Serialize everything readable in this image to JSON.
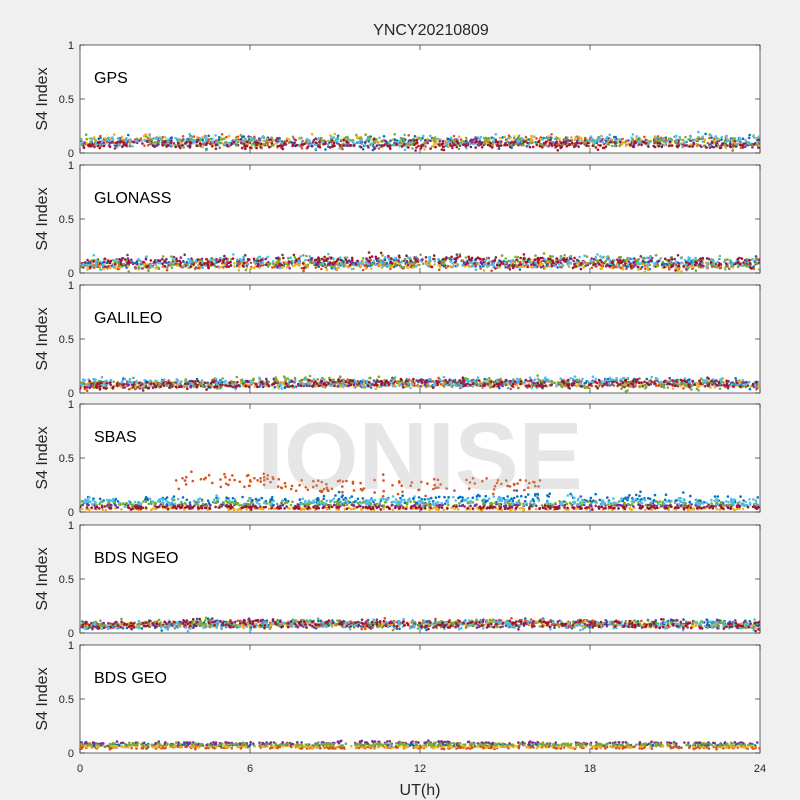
{
  "title": "YNCY20210809",
  "xlabel": "UT(h)",
  "ylabel": "S4 Index",
  "watermark": "IONISE",
  "xticks": [
    "0",
    "6",
    "12",
    "18",
    "24"
  ],
  "yticks": [
    "0",
    "0.5",
    "1"
  ],
  "colors": [
    "#0072bd",
    "#d95319",
    "#edb120",
    "#7e2f8e",
    "#77ac30",
    "#4dbeee",
    "#a2142f"
  ],
  "chart_data": [
    {
      "type": "scatter",
      "panel": "GPS",
      "xlim": [
        0,
        24
      ],
      "ylim": [
        0,
        1
      ],
      "series": [
        {
          "base": [
            0.1,
            0.11,
            0.1,
            0.12,
            0.1,
            0.09,
            0.1,
            0.11,
            0.1,
            0.12,
            0.1,
            0.11,
            0.1
          ],
          "spread": 0.04
        },
        {
          "base": [
            0.09,
            0.1,
            0.12,
            0.11,
            0.1,
            0.1,
            0.09,
            0.1,
            0.11,
            0.1,
            0.12,
            0.1,
            0.09
          ],
          "spread": 0.04
        },
        {
          "base": [
            0.1,
            0.12,
            0.11,
            0.1,
            0.13,
            0.11,
            0.1,
            0.1,
            0.12,
            0.11,
            0.1,
            0.09,
            0.1
          ],
          "spread": 0.04
        },
        {
          "base": [
            0.08,
            0.09,
            0.09,
            0.1,
            0.09,
            0.08,
            0.09,
            0.1,
            0.09,
            0.09,
            0.1,
            0.08,
            0.08
          ],
          "spread": 0.03
        },
        {
          "base": [
            0.1,
            0.1,
            0.09,
            0.11,
            0.1,
            0.12,
            0.11,
            0.1,
            0.1,
            0.11,
            0.1,
            0.1,
            0.11
          ],
          "spread": 0.04
        },
        {
          "base": [
            0.11,
            0.1,
            0.11,
            0.1,
            0.11,
            0.1,
            0.1,
            0.11,
            0.1,
            0.12,
            0.11,
            0.13,
            0.12
          ],
          "spread": 0.04
        },
        {
          "base": [
            0.07,
            0.08,
            0.08,
            0.07,
            0.08,
            0.08,
            0.07,
            0.08,
            0.08,
            0.07,
            0.08,
            0.07,
            0.07
          ],
          "spread": 0.03
        }
      ]
    },
    {
      "type": "scatter",
      "panel": "GLONASS",
      "xlim": [
        0,
        24
      ],
      "ylim": [
        0,
        1
      ],
      "series": [
        {
          "base": [
            0.08,
            0.07,
            0.08,
            0.09,
            0.08,
            0.09,
            0.1,
            0.09,
            0.08,
            0.09,
            0.08,
            0.09,
            0.08
          ],
          "spread": 0.03
        },
        {
          "base": [
            0.06,
            0.07,
            0.07,
            0.08,
            0.07,
            0.08,
            0.08,
            0.07,
            0.08,
            0.07,
            0.06,
            0.07,
            0.06
          ],
          "spread": 0.03
        },
        {
          "base": [
            0.07,
            0.06,
            0.08,
            0.07,
            0.08,
            0.07,
            0.08,
            0.07,
            0.08,
            0.07,
            0.06,
            0.07,
            0.06
          ],
          "spread": 0.03
        },
        {
          "base": [
            0.09,
            0.1,
            0.11,
            0.1,
            0.11,
            0.1,
            0.11,
            0.1,
            0.09,
            0.1,
            0.11,
            0.1,
            0.12
          ],
          "spread": 0.04
        },
        {
          "base": [
            0.08,
            0.08,
            0.09,
            0.1,
            0.11,
            0.1,
            0.1,
            0.11,
            0.14,
            0.12,
            0.1,
            0.09,
            0.1
          ],
          "spread": 0.04
        },
        {
          "base": [
            0.1,
            0.09,
            0.1,
            0.11,
            0.12,
            0.1,
            0.11,
            0.1,
            0.09,
            0.12,
            0.1,
            0.11,
            0.09
          ],
          "spread": 0.04
        },
        {
          "base": [
            0.09,
            0.1,
            0.09,
            0.1,
            0.11,
            0.12,
            0.13,
            0.12,
            0.1,
            0.1,
            0.09,
            0.1,
            0.09
          ],
          "spread": 0.04
        }
      ]
    },
    {
      "type": "scatter",
      "panel": "GALILEO",
      "xlim": [
        0,
        24
      ],
      "ylim": [
        0,
        1
      ],
      "series": [
        {
          "base": [
            0.08,
            0.08,
            0.09,
            0.08,
            0.09,
            0.08,
            0.09,
            0.1,
            0.09,
            0.1,
            0.11,
            0.09,
            0.08
          ],
          "spread": 0.03
        },
        {
          "base": [
            0.07,
            0.08,
            0.08,
            0.09,
            0.09,
            0.1,
            0.09,
            0.08,
            0.09,
            0.08,
            0.09,
            0.08,
            0.07
          ],
          "spread": 0.03
        },
        {
          "base": [
            0.08,
            0.08,
            0.07,
            0.08,
            0.08,
            0.07,
            0.08,
            0.08,
            0.07,
            0.08,
            0.08,
            0.07,
            0.08
          ],
          "spread": 0.02
        },
        {
          "base": [
            0.07,
            0.07,
            0.08,
            0.08,
            0.09,
            0.09,
            0.1,
            0.09,
            0.09,
            0.09,
            0.08,
            0.09,
            0.08
          ],
          "spread": 0.03
        },
        {
          "base": [
            0.08,
            0.08,
            0.09,
            0.1,
            0.12,
            0.1,
            0.09,
            0.1,
            0.09,
            0.08,
            0.08,
            0.07,
            0.08
          ],
          "spread": 0.04
        },
        {
          "base": [
            0.1,
            0.1,
            0.09,
            0.09,
            0.1,
            0.09,
            0.1,
            0.09,
            0.1,
            0.11,
            0.12,
            0.1,
            0.09
          ],
          "spread": 0.03
        },
        {
          "base": [
            0.07,
            0.07,
            0.08,
            0.08,
            0.09,
            0.1,
            0.1,
            0.09,
            0.09,
            0.09,
            0.1,
            0.09,
            0.08
          ],
          "spread": 0.03
        }
      ]
    },
    {
      "type": "scatter",
      "panel": "SBAS",
      "xlim": [
        0,
        24
      ],
      "ylim": [
        0,
        1
      ],
      "series": [
        {
          "base": [
            0.1,
            0.1,
            0.11,
            0.1,
            0.11,
            0.12,
            0.11,
            0.12,
            0.13,
            0.13,
            0.12,
            0.11,
            0.1
          ],
          "spread": 0.04
        },
        {
          "base": [
            0.1,
            0.1,
            0.3,
            0.28,
            0.24,
            0.24,
            0.24,
            0.26,
            0.24,
            0.22,
            0.22,
            0.22,
            0.22
          ],
          "spread": 0.06,
          "from": 3.3,
          "to": 16.5
        },
        {
          "base": [
            0.03,
            0.03,
            0.03,
            0.03,
            0.03,
            0.03,
            0.03,
            0.03,
            0.03,
            0.03,
            0.03,
            0.03,
            0.03
          ],
          "spread": 0.01
        },
        {
          "base": [
            0.06,
            0.06,
            0.06,
            0.06,
            0.06,
            0.06,
            0.06,
            0.06,
            0.06,
            0.06,
            0.06,
            0.06,
            0.06
          ],
          "spread": 0.01
        },
        {
          "base": [
            0.08,
            0.08,
            0.08,
            0.08,
            0.08,
            0.08,
            0.08,
            0.08,
            0.08,
            0.08,
            0.08,
            0.08,
            0.08
          ],
          "spread": 0.02
        },
        {
          "base": [
            0.09,
            0.09,
            0.1,
            0.1,
            0.1,
            0.1,
            0.1,
            0.1,
            0.1,
            0.1,
            0.1,
            0.1,
            0.09
          ],
          "spread": 0.03
        },
        {
          "base": [
            0.04,
            0.04,
            0.04,
            0.04,
            0.04,
            0.04,
            0.04,
            0.04,
            0.04,
            0.04,
            0.04,
            0.04,
            0.04
          ],
          "spread": 0.01
        }
      ]
    },
    {
      "type": "scatter",
      "panel": "BDS NGEO",
      "xlim": [
        0,
        24
      ],
      "ylim": [
        0,
        1
      ],
      "series": [
        {
          "base": [
            0.07,
            0.07,
            0.08,
            0.08,
            0.09,
            0.08,
            0.08,
            0.09,
            0.08,
            0.09,
            0.09,
            0.1,
            0.08
          ],
          "spread": 0.03
        },
        {
          "base": [
            0.07,
            0.08,
            0.08,
            0.09,
            0.09,
            0.08,
            0.09,
            0.09,
            0.1,
            0.09,
            0.08,
            0.08,
            0.07
          ],
          "spread": 0.03
        },
        {
          "base": [
            0.07,
            0.07,
            0.08,
            0.08,
            0.08,
            0.07,
            0.08,
            0.08,
            0.09,
            0.08,
            0.07,
            0.07,
            0.07
          ],
          "spread": 0.02
        },
        {
          "base": [
            0.07,
            0.07,
            0.08,
            0.09,
            0.08,
            0.08,
            0.09,
            0.08,
            0.08,
            0.08,
            0.08,
            0.07,
            0.07
          ],
          "spread": 0.03
        },
        {
          "base": [
            0.08,
            0.09,
            0.09,
            0.08,
            0.09,
            0.08,
            0.08,
            0.09,
            0.08,
            0.08,
            0.09,
            0.08,
            0.08
          ],
          "spread": 0.03
        },
        {
          "base": [
            0.06,
            0.07,
            0.07,
            0.08,
            0.08,
            0.08,
            0.08,
            0.09,
            0.08,
            0.08,
            0.07,
            0.08,
            0.07
          ],
          "spread": 0.03
        },
        {
          "base": [
            0.07,
            0.08,
            0.09,
            0.09,
            0.08,
            0.08,
            0.08,
            0.08,
            0.09,
            0.08,
            0.08,
            0.07,
            0.07
          ],
          "spread": 0.03
        }
      ]
    },
    {
      "type": "scatter",
      "panel": "BDS GEO",
      "xlim": [
        0,
        24
      ],
      "ylim": [
        0,
        1
      ],
      "series": [
        {
          "base": [
            0.07,
            0.07,
            0.07,
            0.07,
            0.07,
            0.07,
            0.07,
            0.07,
            0.07,
            0.07,
            0.07,
            0.07,
            0.07
          ],
          "spread": 0.01
        },
        {
          "base": [
            0.05,
            0.05,
            0.05,
            0.05,
            0.05,
            0.05,
            0.05,
            0.05,
            0.05,
            0.05,
            0.05,
            0.05,
            0.05
          ],
          "spread": 0.01
        },
        {
          "base": [
            0.06,
            0.06,
            0.06,
            0.06,
            0.06,
            0.06,
            0.06,
            0.06,
            0.06,
            0.06,
            0.06,
            0.06,
            0.06
          ],
          "spread": 0.01
        },
        {
          "base": [
            0.09,
            0.09,
            0.09,
            0.09,
            0.09,
            0.1,
            0.1,
            0.09,
            0.09,
            0.09,
            0.09,
            0.09,
            0.09
          ],
          "spread": 0.01
        },
        {
          "base": [
            0.08,
            0.08,
            0.08,
            0.08,
            0.08,
            0.08,
            0.08,
            0.08,
            0.08,
            0.08,
            0.08,
            0.08,
            0.08
          ],
          "spread": 0.01
        }
      ]
    }
  ]
}
